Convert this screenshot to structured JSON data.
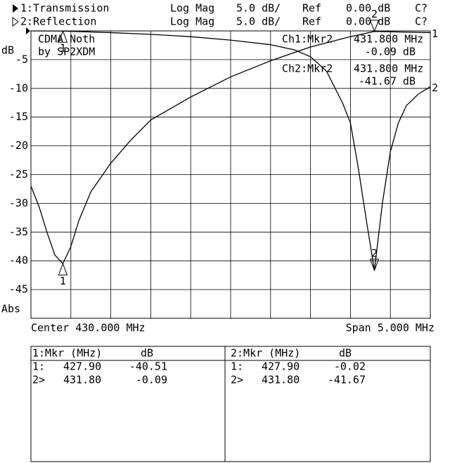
{
  "chart_data": {
    "type": "line",
    "header_rows": [
      [
        "Log Mag",
        "5.0 dB/",
        "Ref",
        "0.00 dB",
        "C?"
      ],
      [
        "Log Mag",
        "5.0 dB/",
        "Ref",
        "0.00 dB",
        "C?"
      ]
    ],
    "annotation": [
      "CDMA Noth",
      "by SP2XDM"
    ],
    "y_unit": "dB",
    "y_format": "Abs",
    "center_label": "Center 430.000 MHz",
    "span_label": "Span 5.000 MHz",
    "readouts": [
      [
        "Ch1:Mkr2",
        "431.800 MHz",
        "-0.09 dB"
      ],
      [
        "Ch2:Mkr2",
        "431.800 MHz",
        "-41.67 dB"
      ]
    ],
    "xlim": [
      427.5,
      432.5
    ],
    "ylim": [
      -50,
      0
    ],
    "yticks": [
      -5,
      -10,
      -15,
      -20,
      -25,
      -30,
      -35,
      -40,
      -45
    ],
    "grid": true,
    "series": [
      {
        "name": "1:Transmission",
        "trace_label": "1",
        "color": "#000000",
        "x": [
          427.5,
          427.6,
          427.7,
          427.8,
          427.9,
          428.0,
          428.1,
          428.25,
          428.5,
          428.75,
          429.0,
          429.5,
          430.0,
          430.5,
          431.0,
          431.5,
          431.8,
          432.0,
          432.5
        ],
        "values": [
          -27.0,
          -30.5,
          -35.0,
          -39.0,
          -40.51,
          -37.5,
          -33.0,
          -28.0,
          -23.0,
          -19.0,
          -15.5,
          -11.5,
          -8.0,
          -5.2,
          -2.8,
          -1.0,
          -0.09,
          -0.15,
          -0.3
        ],
        "markers": [
          {
            "label": "1",
            "x": 427.9,
            "value": -40.51
          },
          {
            "label": "2",
            "x": 431.8,
            "value": -0.09
          }
        ]
      },
      {
        "name": "2:Reflection",
        "trace_label": "2",
        "color": "#000000",
        "x": [
          427.5,
          427.9,
          428.5,
          429.0,
          429.5,
          430.0,
          430.5,
          430.8,
          431.0,
          431.2,
          431.4,
          431.5,
          431.6,
          431.7,
          431.8,
          431.9,
          432.0,
          432.1,
          432.2,
          432.35,
          432.5
        ],
        "values": [
          0.0,
          -0.02,
          -0.3,
          -0.6,
          -1.0,
          -1.6,
          -2.4,
          -3.3,
          -4.5,
          -7.0,
          -12.5,
          -16.0,
          -24.0,
          -33.0,
          -41.67,
          -30.0,
          -21.0,
          -16.0,
          -13.0,
          -11.0,
          -9.7
        ],
        "markers": [
          {
            "label": "1",
            "x": 427.9,
            "value": -0.02
          },
          {
            "label": "2",
            "x": 431.8,
            "value": -41.67
          }
        ]
      }
    ],
    "marker_table": [
      {
        "header": [
          "1:Mkr (MHz)",
          "dB"
        ],
        "rows": [
          [
            "1:",
            "427.90",
            "-40.51"
          ],
          [
            "2>",
            "431.80",
            "-0.09"
          ]
        ]
      },
      {
        "header": [
          "2:Mkr (MHz)",
          "dB"
        ],
        "rows": [
          [
            "1:",
            "427.90",
            "-0.02"
          ],
          [
            "2>",
            "431.80",
            "-41.67"
          ]
        ]
      }
    ]
  }
}
